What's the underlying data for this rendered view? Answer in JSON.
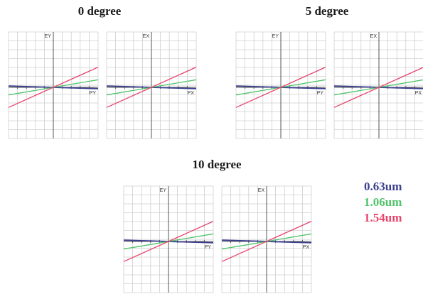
{
  "groups": [
    {
      "title": "0 degree",
      "plots": [
        {
          "v_label": "EY",
          "h_label": "PY"
        },
        {
          "v_label": "EX",
          "h_label": "PX"
        }
      ]
    },
    {
      "title": "5 degree",
      "plots": [
        {
          "v_label": "EY",
          "h_label": "PY"
        },
        {
          "v_label": "EX",
          "h_label": "PX"
        }
      ]
    },
    {
      "title": "10 degree",
      "plots": [
        {
          "v_label": "EY",
          "h_label": "PY"
        },
        {
          "v_label": "EX",
          "h_label": "PX"
        }
      ]
    }
  ],
  "legend": [
    {
      "label": "0.63um",
      "color": "#3b3f8f"
    },
    {
      "label": "1.06um",
      "color": "#4fc46a"
    },
    {
      "label": "1.54um",
      "color": "#e8436b"
    }
  ],
  "chart_data": {
    "type": "line",
    "x": [
      -1,
      1
    ],
    "xlim": [
      -1,
      1
    ],
    "ylim": [
      -1,
      1
    ],
    "grid": true,
    "series": [
      {
        "name": "0.63um",
        "color": "#3b3f8f",
        "values": [
          0.03,
          -0.03
        ]
      },
      {
        "name": "1.06um",
        "color": "#4fc46a",
        "values": [
          -0.17,
          0.17
        ]
      },
      {
        "name": "1.54um",
        "color": "#e8436b",
        "values": [
          -0.45,
          0.45
        ]
      }
    ]
  }
}
